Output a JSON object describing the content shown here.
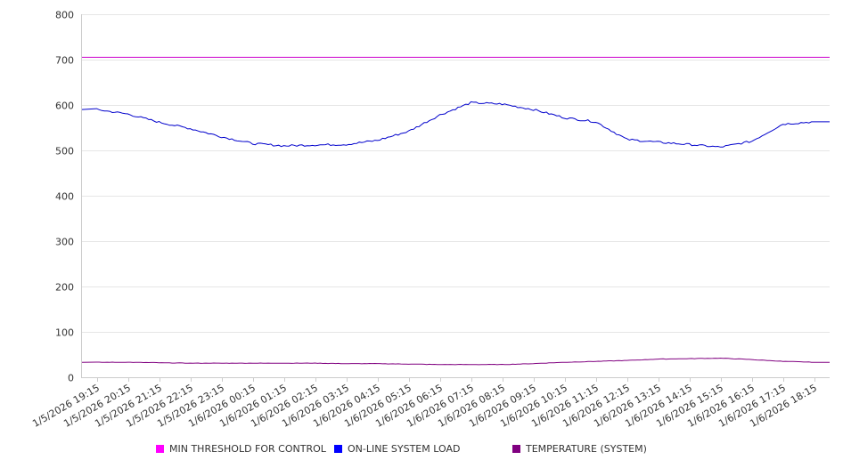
{
  "chart_data": {
    "type": "line",
    "ylim": [
      0,
      800
    ],
    "yticks": [
      0,
      100,
      200,
      300,
      400,
      500,
      600,
      700,
      800
    ],
    "grid": true,
    "legend_position": "bottom",
    "x": [
      "1/5/2026 19:15",
      "1/5/2026 20:15",
      "1/5/2026 21:15",
      "1/5/2026 22:15",
      "1/5/2026 23:15",
      "1/6/2026 00:15",
      "1/6/2026 01:15",
      "1/6/2026 02:15",
      "1/6/2026 03:15",
      "1/6/2026 04:15",
      "1/6/2026 05:15",
      "1/6/2026 06:15",
      "1/6/2026 07:15",
      "1/6/2026 08:15",
      "1/6/2026 09:15",
      "1/6/2026 10:15",
      "1/6/2026 11:15",
      "1/6/2026 12:15",
      "1/6/2026 13:15",
      "1/6/2026 14:15",
      "1/6/2026 15:15",
      "1/6/2026 16:15",
      "1/6/2026 17:15",
      "1/6/2026 18:15"
    ],
    "series": [
      {
        "name": "MIN THRESHOLD FOR CONTROL",
        "color": "#cc00cc",
        "values": [
          705,
          705,
          705,
          705,
          705,
          705,
          705,
          705,
          705,
          705,
          705,
          705,
          705,
          705,
          705,
          705,
          705,
          705,
          705,
          705,
          705,
          705,
          705,
          705
        ]
      },
      {
        "name": "ON-LINE SYSTEM LOAD",
        "color": "#0000cc",
        "values": [
          590,
          580,
          562,
          548,
          530,
          515,
          510,
          512,
          513,
          522,
          542,
          578,
          605,
          602,
          590,
          572,
          563,
          524,
          518,
          513,
          507,
          520,
          558,
          563
        ]
      },
      {
        "name": "TEMPERATURE (SYSTEM)",
        "color": "#800080",
        "values": [
          33,
          33,
          32,
          31,
          31,
          31,
          31,
          31,
          30,
          30,
          29,
          28,
          28,
          28,
          30,
          33,
          35,
          37,
          40,
          41,
          42,
          39,
          35,
          33
        ]
      }
    ]
  }
}
